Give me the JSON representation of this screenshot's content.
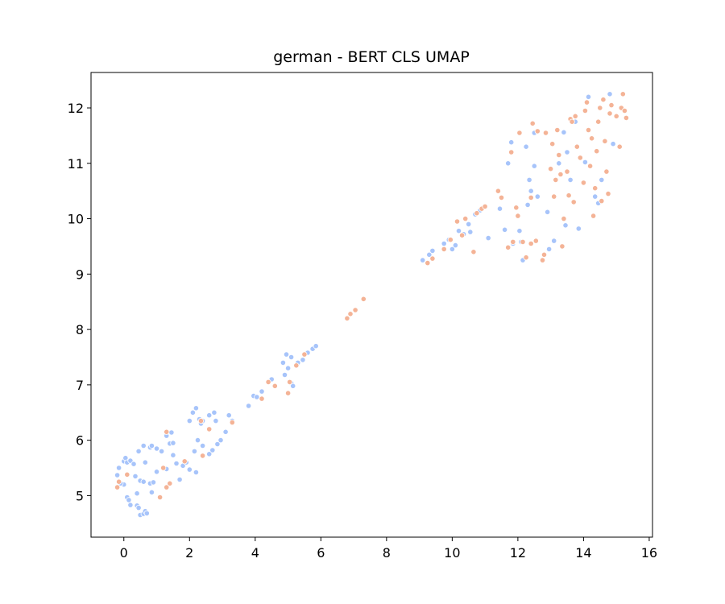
{
  "chart_data": {
    "type": "scatter",
    "title": "german - BERT CLS UMAP",
    "xlabel": "",
    "ylabel": "",
    "xlim": [
      -1.0,
      16.1
    ],
    "ylim": [
      4.25,
      12.64
    ],
    "x_ticks": [
      0,
      2,
      4,
      6,
      8,
      10,
      12,
      14,
      16
    ],
    "y_ticks": [
      5,
      6,
      7,
      8,
      9,
      10,
      11,
      12
    ],
    "grid": false,
    "legend": "none",
    "colors": {
      "blue": "#a7c4fa",
      "orange": "#f4b396"
    },
    "series": [
      {
        "color": "#a7c4fa",
        "points": [
          [
            -0.2,
            5.37
          ],
          [
            -0.15,
            5.5
          ],
          [
            0.0,
            5.62
          ],
          [
            0.05,
            5.68
          ],
          [
            0.1,
            5.6
          ],
          [
            0.2,
            5.63
          ],
          [
            0.3,
            5.57
          ],
          [
            0.0,
            5.2
          ],
          [
            -0.1,
            5.22
          ],
          [
            0.1,
            4.97
          ],
          [
            0.15,
            4.92
          ],
          [
            0.2,
            4.83
          ],
          [
            0.4,
            4.82
          ],
          [
            0.45,
            4.78
          ],
          [
            0.5,
            4.65
          ],
          [
            0.6,
            4.67
          ],
          [
            0.65,
            4.72
          ],
          [
            0.7,
            4.68
          ],
          [
            0.4,
            5.04
          ],
          [
            0.5,
            5.27
          ],
          [
            0.6,
            5.25
          ],
          [
            0.8,
            5.22
          ],
          [
            0.9,
            5.24
          ],
          [
            0.85,
            5.06
          ],
          [
            1.0,
            5.43
          ],
          [
            0.35,
            5.35
          ],
          [
            0.45,
            5.8
          ],
          [
            0.6,
            5.9
          ],
          [
            0.65,
            5.6
          ],
          [
            0.8,
            5.87
          ],
          [
            0.85,
            5.9
          ],
          [
            1.0,
            5.85
          ],
          [
            1.15,
            5.8
          ],
          [
            1.3,
            6.08
          ],
          [
            1.3,
            5.48
          ],
          [
            1.4,
            5.94
          ],
          [
            1.5,
            5.95
          ],
          [
            1.45,
            6.14
          ],
          [
            1.5,
            5.73
          ],
          [
            1.6,
            5.58
          ],
          [
            1.8,
            5.54
          ],
          [
            1.7,
            5.29
          ],
          [
            1.9,
            5.6
          ],
          [
            2.0,
            6.35
          ],
          [
            2.1,
            6.5
          ],
          [
            2.2,
            6.58
          ],
          [
            2.3,
            6.38
          ],
          [
            2.35,
            6.3
          ],
          [
            2.4,
            6.35
          ],
          [
            2.25,
            6.0
          ],
          [
            2.4,
            5.9
          ],
          [
            2.15,
            5.8
          ],
          [
            2.2,
            5.42
          ],
          [
            2.0,
            5.47
          ],
          [
            2.6,
            6.45
          ],
          [
            2.75,
            6.5
          ],
          [
            2.8,
            6.35
          ],
          [
            2.6,
            5.75
          ],
          [
            2.7,
            5.82
          ],
          [
            2.85,
            5.93
          ],
          [
            2.95,
            6.0
          ],
          [
            3.1,
            6.15
          ],
          [
            3.2,
            6.45
          ],
          [
            3.3,
            6.35
          ],
          [
            3.8,
            6.62
          ],
          [
            3.95,
            6.8
          ],
          [
            4.05,
            6.78
          ],
          [
            4.2,
            6.88
          ],
          [
            4.5,
            7.1
          ],
          [
            4.85,
            7.4
          ],
          [
            4.95,
            7.55
          ],
          [
            5.1,
            7.5
          ],
          [
            5.0,
            7.3
          ],
          [
            4.9,
            7.18
          ],
          [
            5.1,
            7.03
          ],
          [
            5.15,
            6.98
          ],
          [
            5.3,
            7.4
          ],
          [
            5.45,
            7.45
          ],
          [
            5.6,
            7.58
          ],
          [
            5.75,
            7.65
          ],
          [
            5.85,
            7.7
          ],
          [
            9.1,
            9.25
          ],
          [
            9.3,
            9.35
          ],
          [
            9.4,
            9.42
          ],
          [
            9.75,
            9.55
          ],
          [
            9.9,
            9.62
          ],
          [
            10.0,
            9.45
          ],
          [
            10.1,
            9.52
          ],
          [
            10.2,
            9.78
          ],
          [
            10.35,
            9.72
          ],
          [
            10.5,
            9.9
          ],
          [
            10.55,
            9.76
          ],
          [
            10.7,
            10.08
          ],
          [
            10.85,
            10.15
          ],
          [
            11.1,
            9.65
          ],
          [
            11.45,
            10.18
          ],
          [
            11.6,
            9.8
          ],
          [
            11.7,
            11.0
          ],
          [
            11.8,
            11.38
          ],
          [
            11.85,
            9.55
          ],
          [
            12.05,
            9.78
          ],
          [
            12.1,
            9.58
          ],
          [
            12.15,
            9.25
          ],
          [
            12.25,
            11.3
          ],
          [
            12.3,
            10.25
          ],
          [
            12.35,
            10.7
          ],
          [
            12.4,
            10.5
          ],
          [
            12.5,
            10.95
          ],
          [
            12.5,
            11.55
          ],
          [
            12.6,
            10.4
          ],
          [
            12.9,
            10.12
          ],
          [
            12.95,
            9.45
          ],
          [
            13.1,
            9.6
          ],
          [
            13.25,
            11.0
          ],
          [
            13.4,
            11.56
          ],
          [
            13.45,
            9.88
          ],
          [
            13.5,
            11.2
          ],
          [
            13.6,
            10.7
          ],
          [
            13.75,
            11.75
          ],
          [
            13.85,
            9.82
          ],
          [
            14.05,
            11.02
          ],
          [
            14.15,
            12.2
          ],
          [
            14.35,
            10.4
          ],
          [
            14.45,
            10.28
          ],
          [
            14.55,
            10.7
          ],
          [
            14.8,
            12.25
          ],
          [
            14.9,
            11.35
          ]
        ]
      },
      {
        "color": "#f4b396",
        "points": [
          [
            -0.2,
            5.15
          ],
          [
            -0.15,
            5.25
          ],
          [
            0.1,
            5.38
          ],
          [
            1.1,
            4.97
          ],
          [
            1.2,
            5.5
          ],
          [
            1.3,
            5.15
          ],
          [
            1.3,
            6.15
          ],
          [
            1.4,
            5.22
          ],
          [
            1.85,
            5.62
          ],
          [
            2.4,
            5.72
          ],
          [
            2.35,
            6.35
          ],
          [
            2.6,
            6.2
          ],
          [
            3.3,
            6.32
          ],
          [
            4.2,
            6.75
          ],
          [
            4.4,
            7.05
          ],
          [
            4.6,
            6.98
          ],
          [
            5.0,
            6.85
          ],
          [
            5.05,
            7.05
          ],
          [
            5.25,
            7.35
          ],
          [
            5.5,
            7.55
          ],
          [
            6.8,
            8.2
          ],
          [
            6.9,
            8.28
          ],
          [
            7.05,
            8.35
          ],
          [
            7.3,
            8.55
          ],
          [
            9.25,
            9.2
          ],
          [
            9.4,
            9.28
          ],
          [
            9.75,
            9.45
          ],
          [
            9.95,
            9.62
          ],
          [
            10.15,
            9.95
          ],
          [
            10.3,
            9.7
          ],
          [
            10.4,
            10.0
          ],
          [
            10.65,
            9.4
          ],
          [
            10.75,
            10.1
          ],
          [
            10.9,
            10.18
          ],
          [
            11.0,
            10.22
          ],
          [
            11.4,
            10.5
          ],
          [
            11.5,
            10.38
          ],
          [
            11.7,
            9.48
          ],
          [
            11.8,
            11.2
          ],
          [
            11.85,
            9.58
          ],
          [
            11.95,
            10.2
          ],
          [
            12.0,
            10.05
          ],
          [
            12.05,
            11.55
          ],
          [
            12.15,
            9.58
          ],
          [
            12.25,
            9.3
          ],
          [
            12.4,
            9.55
          ],
          [
            12.4,
            10.38
          ],
          [
            12.45,
            11.72
          ],
          [
            12.55,
            9.6
          ],
          [
            12.6,
            11.58
          ],
          [
            12.75,
            9.25
          ],
          [
            12.8,
            9.35
          ],
          [
            12.85,
            11.55
          ],
          [
            13.0,
            10.9
          ],
          [
            13.05,
            11.35
          ],
          [
            13.1,
            10.4
          ],
          [
            13.15,
            10.7
          ],
          [
            13.2,
            11.6
          ],
          [
            13.25,
            11.15
          ],
          [
            13.3,
            10.8
          ],
          [
            13.35,
            9.5
          ],
          [
            13.4,
            10.0
          ],
          [
            13.5,
            10.85
          ],
          [
            13.55,
            10.42
          ],
          [
            13.6,
            11.8
          ],
          [
            13.65,
            11.75
          ],
          [
            13.7,
            10.3
          ],
          [
            13.75,
            11.85
          ],
          [
            13.8,
            11.3
          ],
          [
            13.9,
            11.1
          ],
          [
            14.0,
            10.65
          ],
          [
            14.05,
            11.95
          ],
          [
            14.1,
            12.1
          ],
          [
            14.15,
            11.6
          ],
          [
            14.2,
            10.95
          ],
          [
            14.25,
            11.45
          ],
          [
            14.3,
            10.05
          ],
          [
            14.35,
            10.55
          ],
          [
            14.4,
            11.22
          ],
          [
            14.45,
            11.75
          ],
          [
            14.5,
            12.0
          ],
          [
            14.55,
            10.32
          ],
          [
            14.6,
            12.15
          ],
          [
            14.65,
            11.4
          ],
          [
            14.7,
            10.85
          ],
          [
            14.75,
            10.45
          ],
          [
            14.8,
            11.9
          ],
          [
            14.85,
            12.05
          ],
          [
            15.0,
            11.85
          ],
          [
            15.1,
            11.3
          ],
          [
            15.15,
            12.0
          ],
          [
            15.2,
            12.25
          ],
          [
            15.25,
            11.95
          ],
          [
            15.3,
            11.82
          ]
        ]
      }
    ]
  }
}
